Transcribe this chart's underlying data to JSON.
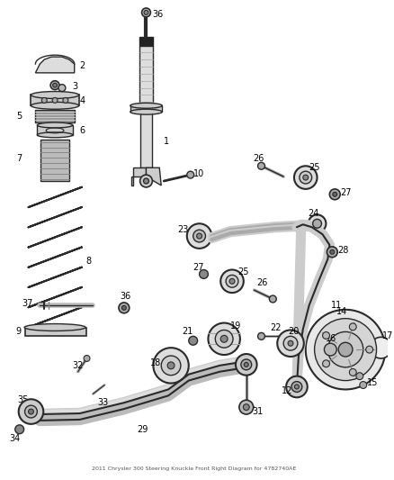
{
  "background_color": "#ffffff",
  "line_color": "#2a2a2a",
  "label_color": "#000000",
  "label_fontsize": 7.0,
  "fig_w": 4.38,
  "fig_h": 5.33,
  "dpi": 100
}
